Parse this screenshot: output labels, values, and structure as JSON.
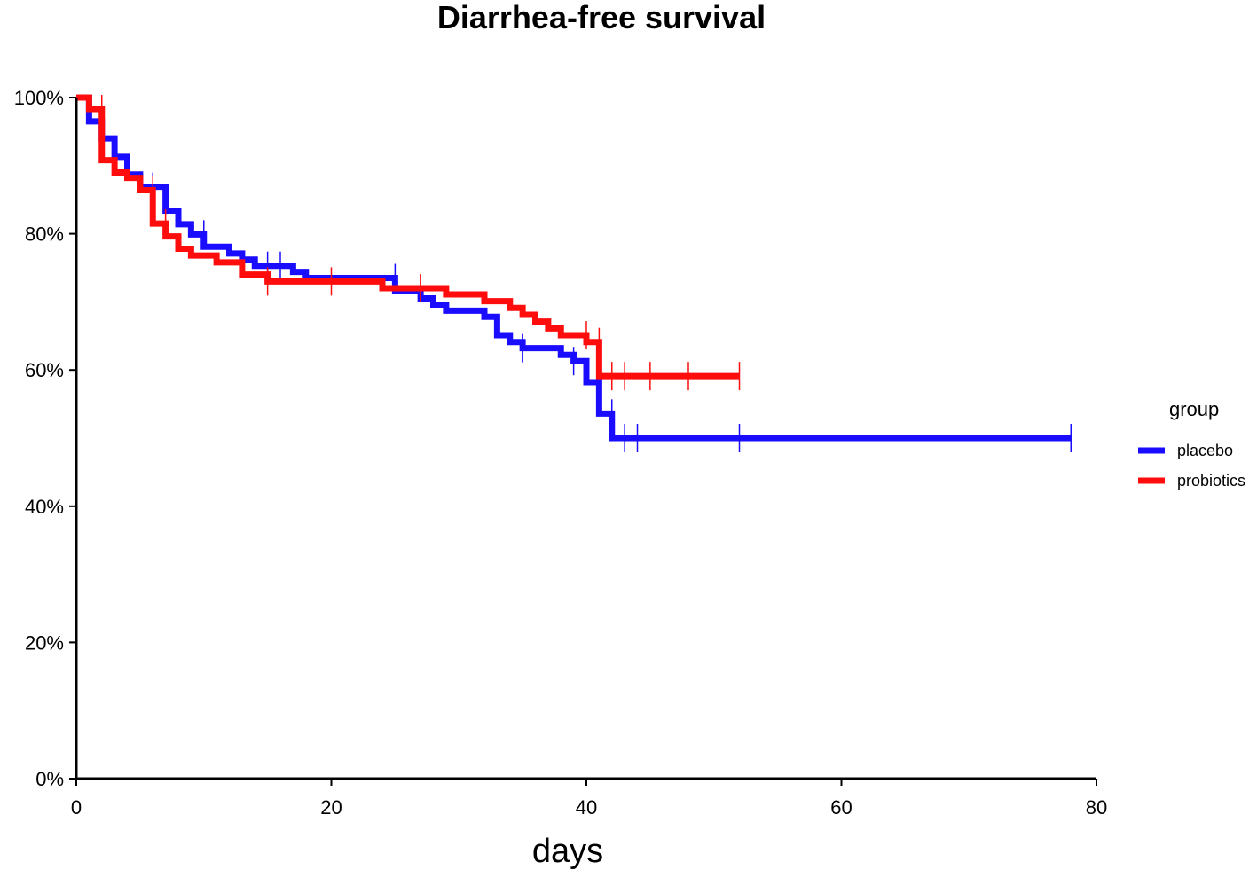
{
  "chart_data": {
    "type": "line",
    "subtype": "kaplan-meier-step",
    "title": "Diarrhea-free survival",
    "xlabel": "days",
    "ylabel": "",
    "xlim": [
      0,
      80
    ],
    "ylim": [
      0,
      1
    ],
    "x_ticks": [
      0,
      20,
      40,
      60,
      80
    ],
    "x_tick_labels": [
      "0",
      "20",
      "40",
      "60",
      "80"
    ],
    "y_ticks": [
      0,
      0.2,
      0.4,
      0.6,
      0.8,
      1.0
    ],
    "y_tick_labels": [
      "0%",
      "20%",
      "40%",
      "60%",
      "80%",
      "100%"
    ],
    "grid": false,
    "legend": {
      "title": "group",
      "position": "right"
    },
    "series": [
      {
        "name": "placebo",
        "color": "#1a0dff",
        "steps": [
          [
            0,
            1.0
          ],
          [
            1,
            0.965
          ],
          [
            2,
            0.94
          ],
          [
            3,
            0.913
          ],
          [
            4,
            0.887
          ],
          [
            5,
            0.869
          ],
          [
            7,
            0.834
          ],
          [
            8,
            0.814
          ],
          [
            9,
            0.799
          ],
          [
            10,
            0.781
          ],
          [
            12,
            0.771
          ],
          [
            13,
            0.762
          ],
          [
            14,
            0.753
          ],
          [
            17,
            0.744
          ],
          [
            18,
            0.735
          ],
          [
            25,
            0.716
          ],
          [
            27,
            0.705
          ],
          [
            28,
            0.696
          ],
          [
            29,
            0.687
          ],
          [
            32,
            0.678
          ],
          [
            33,
            0.651
          ],
          [
            34,
            0.641
          ],
          [
            35,
            0.632
          ],
          [
            38,
            0.622
          ],
          [
            39,
            0.613
          ],
          [
            40,
            0.582
          ],
          [
            41,
            0.536
          ],
          [
            42,
            0.5
          ],
          [
            78,
            0.5
          ]
        ],
        "censored": [
          [
            6,
            0.869
          ],
          [
            10,
            0.799
          ],
          [
            15,
            0.753
          ],
          [
            16,
            0.753
          ],
          [
            25,
            0.735
          ],
          [
            35,
            0.632
          ],
          [
            39,
            0.613
          ],
          [
            42,
            0.536
          ],
          [
            43,
            0.5
          ],
          [
            44,
            0.5
          ],
          [
            52,
            0.5
          ],
          [
            78,
            0.5
          ]
        ]
      },
      {
        "name": "probiotics",
        "color": "#ff0d0d",
        "steps": [
          [
            0,
            1.0
          ],
          [
            1,
            0.983
          ],
          [
            2,
            0.908
          ],
          [
            3,
            0.89
          ],
          [
            4,
            0.882
          ],
          [
            5,
            0.864
          ],
          [
            6,
            0.815
          ],
          [
            7,
            0.796
          ],
          [
            8,
            0.778
          ],
          [
            9,
            0.768
          ],
          [
            11,
            0.758
          ],
          [
            13,
            0.74
          ],
          [
            15,
            0.73
          ],
          [
            24,
            0.72
          ],
          [
            29,
            0.711
          ],
          [
            32,
            0.701
          ],
          [
            34,
            0.691
          ],
          [
            35,
            0.681
          ],
          [
            36,
            0.671
          ],
          [
            37,
            0.661
          ],
          [
            38,
            0.651
          ],
          [
            40,
            0.641
          ],
          [
            41,
            0.591
          ],
          [
            52,
            0.591
          ]
        ],
        "censored": [
          [
            2,
            0.983
          ],
          [
            6,
            0.864
          ],
          [
            7,
            0.815
          ],
          [
            15,
            0.73
          ],
          [
            20,
            0.73
          ],
          [
            27,
            0.72
          ],
          [
            40,
            0.651
          ],
          [
            41,
            0.641
          ],
          [
            42,
            0.591
          ],
          [
            43,
            0.591
          ],
          [
            45,
            0.591
          ],
          [
            48,
            0.591
          ],
          [
            52,
            0.591
          ]
        ]
      }
    ]
  }
}
